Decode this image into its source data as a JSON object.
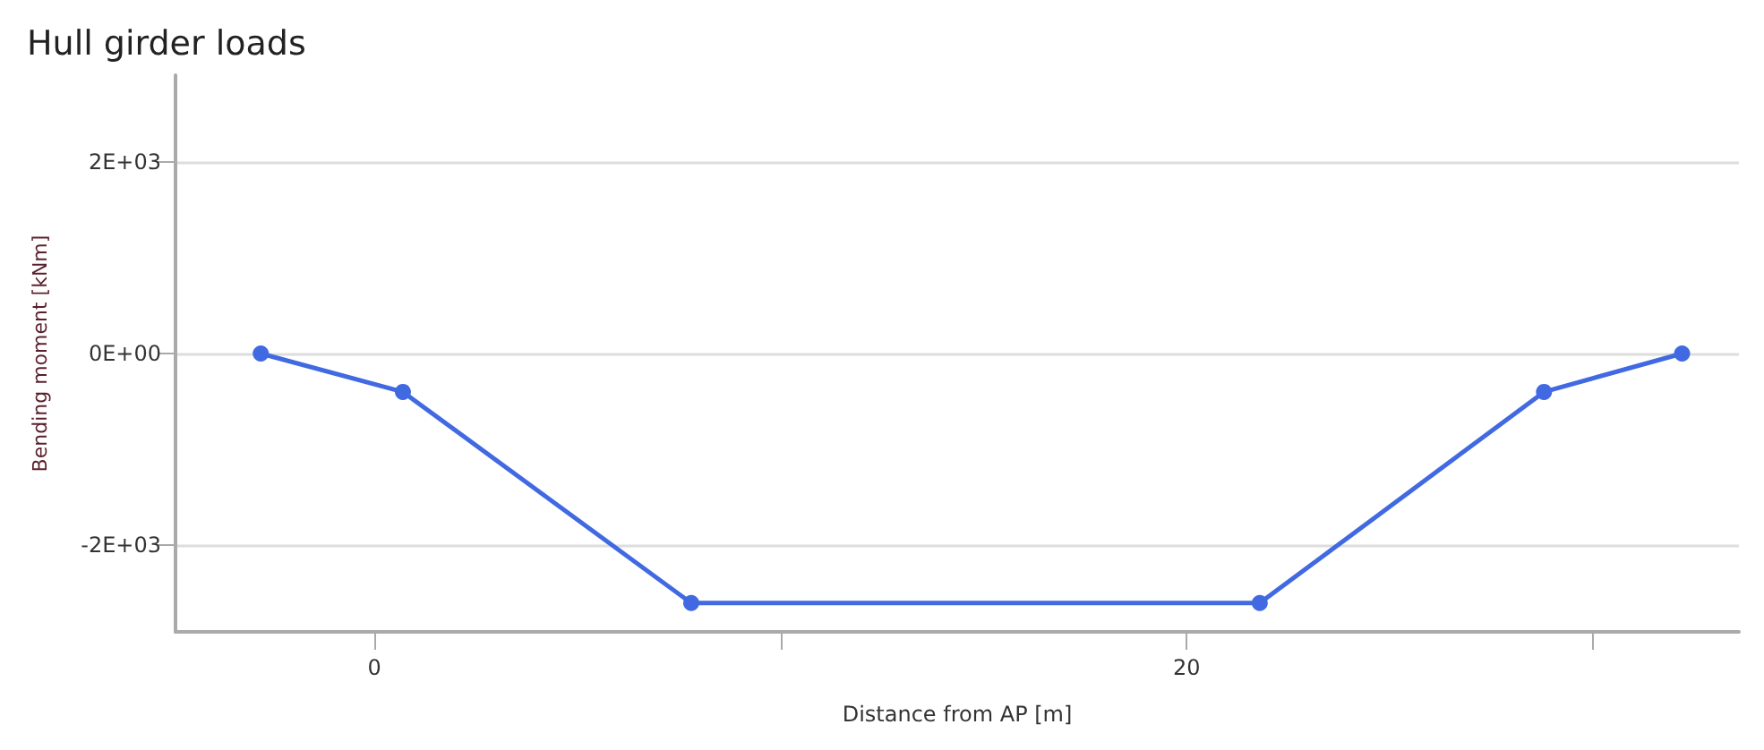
{
  "chart_data": {
    "type": "line",
    "title": "Hull girder loads",
    "xlabel": "Distance from AP [m]",
    "ylabel": "Bending moment [kNm]",
    "x": [
      -2.8,
      0.7,
      7.8,
      21.8,
      28.8,
      32.2
    ],
    "series": [
      {
        "color": "#4169e1",
        "values": [
          0,
          -400,
          -2600,
          -2600,
          -400,
          0
        ]
      }
    ],
    "xlim": [
      -4.9,
      33.6
    ],
    "xticks": [
      0,
      {
        "value": 10,
        "label": null
      },
      20,
      {
        "value": 30,
        "label": null
      }
    ],
    "ylim": [
      -2900,
      2900
    ],
    "yticks": [
      {
        "value": -2000,
        "label": "-2E+03"
      },
      {
        "value": 0,
        "label": "0E+00"
      },
      {
        "value": 2000,
        "label": "2E+03"
      }
    ],
    "grid": "y",
    "marker": "circle",
    "line_style": "solid"
  }
}
